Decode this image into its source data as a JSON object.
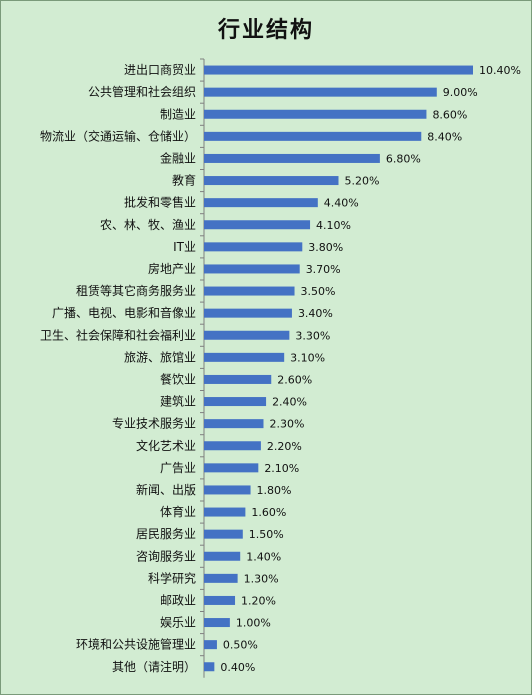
{
  "chart_data": {
    "type": "bar",
    "orientation": "horizontal",
    "title": "行业结构",
    "bar_color": "#4472c4",
    "categories": [
      "进出口商贸业",
      "公共管理和社会组织",
      "制造业",
      "物流业（交通运输、仓储业）",
      "金融业",
      "教育",
      "批发和零售业",
      "农、林、牧、渔业",
      "IT业",
      "房地产业",
      "租赁等其它商务服务业",
      "广播、电视、电影和音像业",
      "卫生、社会保障和社会福利业",
      "旅游、旅馆业",
      "餐饮业",
      "建筑业",
      "专业技术服务业",
      "文化艺术业",
      "广告业",
      "新闻、出版",
      "体育业",
      "居民服务业",
      "咨询服务业",
      "科学研究",
      "邮政业",
      "娱乐业",
      "环境和公共设施管理业",
      "其他（请注明）"
    ],
    "values": [
      10.4,
      9.0,
      8.6,
      8.4,
      6.8,
      5.2,
      4.4,
      4.1,
      3.8,
      3.7,
      3.5,
      3.4,
      3.3,
      3.1,
      2.6,
      2.4,
      2.3,
      2.2,
      2.1,
      1.8,
      1.6,
      1.5,
      1.4,
      1.3,
      1.2,
      1.0,
      0.5,
      0.4
    ],
    "data_labels": [
      "10.40%",
      "9.00%",
      "8.60%",
      "8.40%",
      "6.80%",
      "5.20%",
      "4.40%",
      "4.10%",
      "3.80%",
      "3.70%",
      "3.50%",
      "3.40%",
      "3.30%",
      "3.10%",
      "2.60%",
      "2.40%",
      "2.30%",
      "2.20%",
      "2.10%",
      "1.80%",
      "1.60%",
      "1.50%",
      "1.40%",
      "1.30%",
      "1.20%",
      "1.00%",
      "0.50%",
      "0.40%"
    ],
    "xlim": [
      0,
      10.4
    ],
    "grid": false,
    "legend": "none"
  }
}
